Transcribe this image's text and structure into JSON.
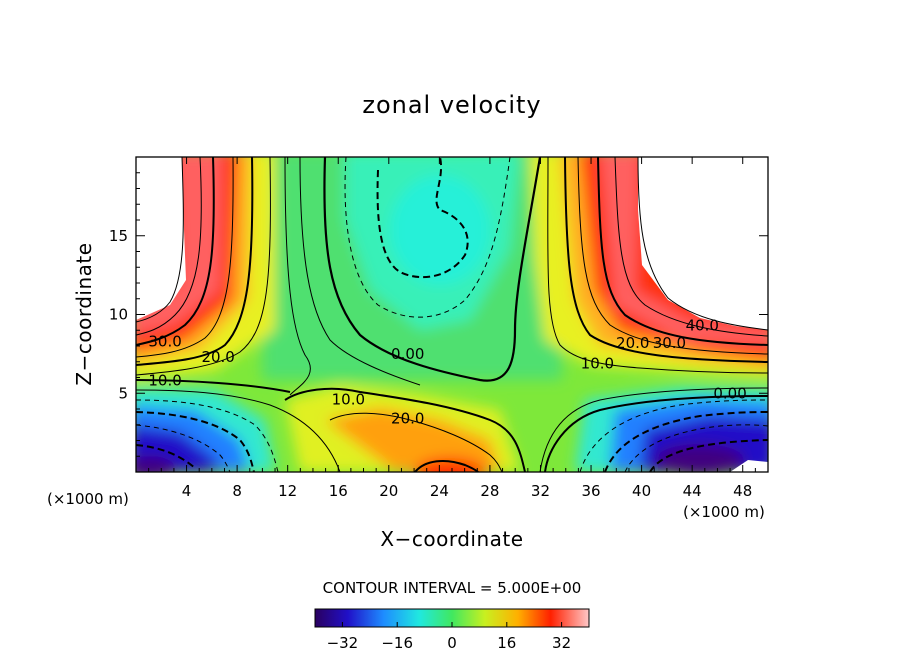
{
  "chart_data": {
    "type": "heatmap",
    "title": "zonal velocity",
    "xlabel": "X−coordinate",
    "ylabel": "Z−coordinate",
    "x_unit": "(×1000 m)",
    "z_unit": "(×1000 m)",
    "xlim": [
      0,
      50
    ],
    "ylim": [
      0,
      20
    ],
    "x_ticks": [
      4,
      8,
      12,
      16,
      20,
      24,
      28,
      32,
      36,
      40,
      44,
      48
    ],
    "y_ticks": [
      5,
      10,
      15
    ],
    "contour_interval_text": "CONTOUR INTERVAL = 5.000E+00",
    "colorbar": {
      "range": [
        -40,
        40
      ],
      "ticks": [
        -32,
        -16,
        0,
        16,
        32
      ],
      "tick_labels": [
        "−32",
        "−16",
        "0",
        "16",
        "32"
      ]
    },
    "contour_labels": [
      {
        "text": "30.0",
        "x": 2.3,
        "z": 8.3
      },
      {
        "text": "20.0",
        "x": 6.5,
        "z": 7.3
      },
      {
        "text": "10.0",
        "x": 2.3,
        "z": 5.8
      },
      {
        "text": "0.00",
        "x": 21.5,
        "z": 7.5
      },
      {
        "text": "10.0",
        "x": 16.8,
        "z": 4.6
      },
      {
        "text": "20.0",
        "x": 21.5,
        "z": 3.4
      },
      {
        "text": "10.0",
        "x": 36.5,
        "z": 6.9
      },
      {
        "text": "20.0",
        "x": 39.3,
        "z": 8.2
      },
      {
        "text": "30.0",
        "x": 42.2,
        "z": 8.2
      },
      {
        "text": "40.0",
        "x": 44.8,
        "z": 9.3
      },
      {
        "text": "0.00",
        "x": 47.0,
        "z": 5.0
      }
    ]
  }
}
